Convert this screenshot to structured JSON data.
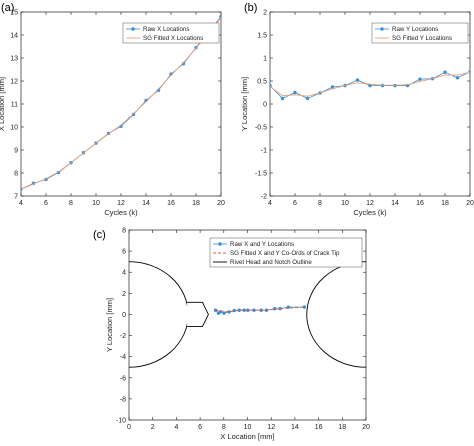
{
  "chart_data": [
    {
      "panel": "(a)",
      "type": "line",
      "xlabel": "Cycles (k)",
      "ylabel": "X Location [mm]",
      "xlim": [
        4,
        20
      ],
      "ylim": [
        7,
        15
      ],
      "xticks": [
        "4",
        "6",
        "8",
        "10",
        "12",
        "14",
        "16",
        "18",
        "20"
      ],
      "yticks": [
        "7",
        "8",
        "9",
        "10",
        "11",
        "12",
        "13",
        "14",
        "15"
      ],
      "legend_position": "top-right",
      "series": [
        {
          "name": "Raw X Locations",
          "style": "markers-line",
          "color": "#3a8fd1",
          "x": [
            4,
            5,
            6,
            7,
            8,
            9,
            10,
            11,
            12,
            13,
            14,
            15,
            16,
            17,
            18,
            20
          ],
          "y": [
            7.3,
            7.55,
            7.72,
            8.02,
            8.45,
            8.88,
            9.3,
            9.72,
            10.03,
            10.55,
            11.15,
            11.6,
            12.3,
            12.75,
            13.45,
            14.8
          ]
        },
        {
          "name": "SG Fitted X Locations",
          "style": "line",
          "color": "#e8a07a",
          "x": [
            4,
            5,
            6,
            7,
            8,
            9,
            10,
            11,
            12,
            13,
            14,
            15,
            16,
            17,
            18,
            20
          ],
          "y": [
            7.3,
            7.52,
            7.75,
            8.05,
            8.45,
            8.87,
            9.3,
            9.7,
            10.08,
            10.58,
            11.1,
            11.65,
            12.25,
            12.8,
            13.42,
            14.75
          ]
        }
      ]
    },
    {
      "panel": "(b)",
      "type": "line",
      "xlabel": "Cycles (k)",
      "ylabel": "Y Location [mm]",
      "xlim": [
        4,
        20
      ],
      "ylim": [
        -2,
        2
      ],
      "xticks": [
        "4",
        "6",
        "8",
        "10",
        "12",
        "14",
        "16",
        "18",
        "20"
      ],
      "yticks": [
        "-2",
        "-1.5",
        "-1",
        "-0.5",
        "0",
        "0.5",
        "1",
        "1.5",
        "2"
      ],
      "legend_position": "top-right",
      "series": [
        {
          "name": "Raw Y Locations",
          "style": "markers-line",
          "color": "#3a8fd1",
          "x": [
            4,
            5,
            6,
            7,
            8,
            9,
            10,
            11,
            12,
            13,
            14,
            15,
            16,
            17,
            18,
            19,
            20
          ],
          "y": [
            0.4,
            0.12,
            0.25,
            0.12,
            0.24,
            0.37,
            0.4,
            0.52,
            0.4,
            0.4,
            0.4,
            0.4,
            0.54,
            0.55,
            0.69,
            0.57,
            0.7
          ]
        },
        {
          "name": "SG Fitted Y Locations",
          "style": "line",
          "color": "#e8a07a",
          "x": [
            4,
            5,
            6,
            7,
            8,
            9,
            10,
            11,
            12,
            13,
            14,
            15,
            16,
            17,
            18,
            19,
            20
          ],
          "y": [
            0.38,
            0.18,
            0.2,
            0.17,
            0.24,
            0.33,
            0.4,
            0.46,
            0.43,
            0.41,
            0.41,
            0.42,
            0.49,
            0.55,
            0.63,
            0.63,
            0.69
          ]
        }
      ]
    },
    {
      "panel": "(c)",
      "type": "scatter",
      "xlabel": "X Location [mm]",
      "ylabel": "Y Location [mm]",
      "xlim": [
        0,
        20
      ],
      "ylim": [
        -10,
        8
      ],
      "xticks": [
        "0",
        "2",
        "4",
        "6",
        "8",
        "10",
        "12",
        "14",
        "16",
        "18",
        "20"
      ],
      "yticks": [
        "-10",
        "-8",
        "-6",
        "-4",
        "-2",
        "0",
        "2",
        "4",
        "6",
        "8"
      ],
      "legend_position": "top-center",
      "series": [
        {
          "name": "Raw X and Y Locations",
          "style": "markers-line",
          "color": "#3a8fd1",
          "x": [
            7.3,
            7.55,
            7.72,
            8.02,
            8.45,
            8.88,
            9.3,
            9.72,
            10.03,
            10.55,
            11.15,
            11.6,
            12.3,
            12.75,
            13.45,
            14.8
          ],
          "y": [
            0.4,
            0.12,
            0.25,
            0.12,
            0.24,
            0.37,
            0.4,
            0.4,
            0.4,
            0.4,
            0.4,
            0.4,
            0.54,
            0.55,
            0.69,
            0.7
          ]
        },
        {
          "name": "SG Fitted X and Y Co-Ords of Crack Tip",
          "style": "dashed",
          "color": "#e05a3a",
          "x": [
            7.3,
            8.45,
            9.3,
            10.55,
            11.6,
            12.75,
            14.8
          ],
          "y": [
            0.38,
            0.24,
            0.4,
            0.41,
            0.42,
            0.55,
            0.69
          ]
        },
        {
          "name": "Rivet Head and Notch Outline",
          "style": "outline",
          "color": "#000000",
          "rivets": [
            {
              "cx": 0,
              "cy": 0,
              "r": 5
            },
            {
              "cx": 20,
              "cy": 0,
              "r": 5
            }
          ],
          "notch": [
            [
              4.9,
              1.15
            ],
            [
              6.2,
              1.15
            ],
            [
              6.7,
              0
            ],
            [
              6.2,
              -1.15
            ],
            [
              4.9,
              -1.15
            ]
          ]
        }
      ]
    }
  ]
}
